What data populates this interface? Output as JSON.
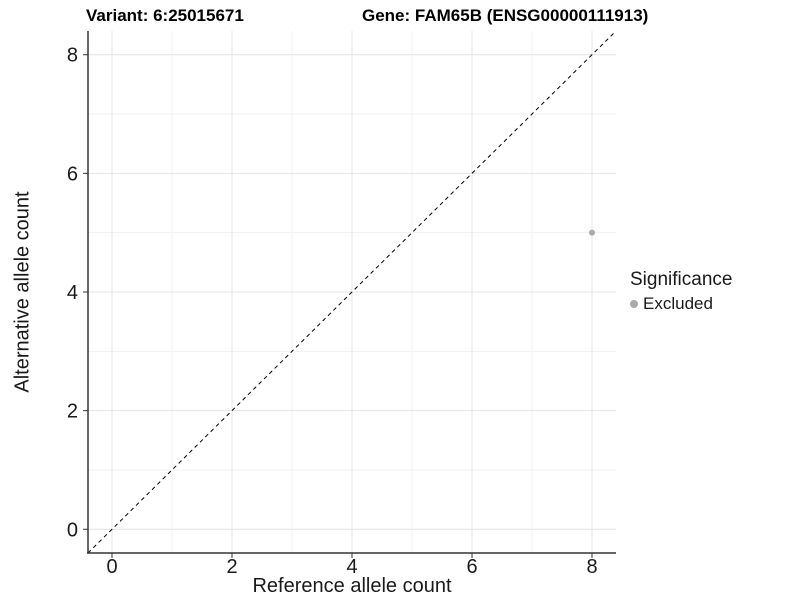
{
  "title": {
    "variant": "Variant: 6:25015671",
    "gene": "Gene: FAM65B (ENSG00000111913)"
  },
  "chart_data": {
    "type": "scatter",
    "xlabel": "Reference allele count",
    "ylabel": "Alternative allele count",
    "xlim": [
      -0.4,
      8.4
    ],
    "ylim": [
      -0.4,
      8.4
    ],
    "xticks": [
      0,
      2,
      4,
      6,
      8
    ],
    "yticks": [
      0,
      2,
      4,
      6,
      8
    ],
    "xticks_minor": [
      1,
      3,
      5,
      7
    ],
    "yticks_minor": [
      1,
      3,
      5,
      7
    ],
    "grid": true,
    "points": [
      {
        "x": 8,
        "y": 5,
        "series": "Excluded"
      }
    ],
    "reference_line": {
      "equation": "y = x",
      "style": "dashed",
      "from": [
        -0.4,
        -0.4
      ],
      "to": [
        8.4,
        8.4
      ]
    },
    "legend": {
      "title": "Significance",
      "position": "right",
      "entries": [
        {
          "label": "Excluded",
          "color": "#aaaaaa"
        }
      ]
    },
    "colors": {
      "point": "#aaaaaa",
      "axis_line": "#333333",
      "tick": "#333333",
      "grid_major": "#e4e4e4",
      "grid_minor": "#f1f1f1",
      "reference_line": "#000000",
      "text": "#1a1a1a",
      "background": "#ffffff"
    }
  }
}
